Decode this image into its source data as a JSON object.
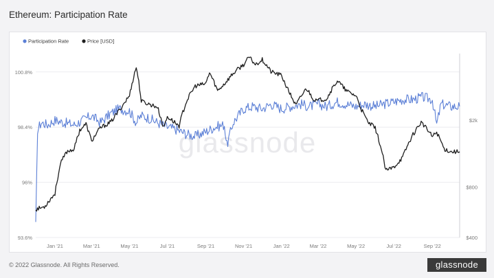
{
  "title": "Ethereum: Participation Rate",
  "footer": "© 2022 Glassnode. All Rights Reserved.",
  "watermark": "glassnode",
  "logo_text": "glassnode",
  "colors": {
    "participation": "#5b7fd6",
    "price": "#1e1e1e",
    "grid": "#ececef"
  },
  "chart_data": {
    "type": "line",
    "title": "Ethereum: Participation Rate",
    "legend": [
      "Participation Rate",
      "Price [USD]"
    ],
    "legend_position": "top-left",
    "grid": true,
    "x_ticks": [
      "Jan '21",
      "Mar '21",
      "May '21",
      "Jul '21",
      "Sep '21",
      "Nov '21",
      "Jan '22",
      "Mar '22",
      "May '22",
      "Jul '22",
      "Sep '22"
    ],
    "y_left": {
      "ticks": [
        "100.8%",
        "98.4%",
        "96%",
        "93.6%"
      ],
      "range": [
        93.6,
        101.6
      ]
    },
    "y_right": {
      "ticks": [
        "$2k",
        "$800",
        "$400"
      ],
      "scale": "log",
      "range": [
        400,
        5000
      ]
    },
    "x_range": [
      "2020-12-01",
      "2022-10-15"
    ],
    "series": [
      {
        "name": "Participation Rate",
        "axis": "left",
        "x": [
          "2020-12-01",
          "2020-12-04",
          "2020-12-10",
          "2020-12-20",
          "2021-01-01",
          "2021-01-15",
          "2021-02-01",
          "2021-02-15",
          "2021-03-01",
          "2021-03-15",
          "2021-04-01",
          "2021-04-15",
          "2021-05-01",
          "2021-05-12",
          "2021-05-20",
          "2021-06-01",
          "2021-06-15",
          "2021-07-01",
          "2021-07-15",
          "2021-08-01",
          "2021-08-15",
          "2021-09-01",
          "2021-09-15",
          "2021-10-01",
          "2021-10-05",
          "2021-10-15",
          "2021-11-01",
          "2021-11-15",
          "2021-12-01",
          "2021-12-15",
          "2022-01-01",
          "2022-01-15",
          "2022-02-01",
          "2022-02-15",
          "2022-03-01",
          "2022-03-15",
          "2022-04-01",
          "2022-04-15",
          "2022-05-01",
          "2022-05-15",
          "2022-06-01",
          "2022-06-15",
          "2022-07-01",
          "2022-07-15",
          "2022-08-01",
          "2022-08-15",
          "2022-09-01",
          "2022-09-08",
          "2022-09-15",
          "2022-10-01",
          "2022-10-15"
        ],
        "values": [
          94.1,
          98.3,
          98.6,
          98.5,
          98.7,
          98.6,
          98.5,
          98.7,
          98.9,
          98.6,
          99.0,
          99.2,
          99.1,
          98.6,
          98.9,
          98.8,
          98.6,
          98.4,
          98.3,
          98.1,
          98.0,
          98.2,
          98.4,
          98.5,
          97.6,
          98.6,
          99.2,
          99.3,
          99.2,
          99.4,
          99.2,
          99.3,
          99.4,
          99.3,
          99.4,
          99.3,
          99.5,
          99.4,
          99.3,
          99.4,
          99.3,
          99.4,
          99.5,
          99.6,
          99.6,
          99.7,
          99.6,
          98.5,
          99.4,
          99.3,
          99.3
        ]
      },
      {
        "name": "Price [USD]",
        "axis": "right",
        "x": [
          "2020-12-01",
          "2020-12-15",
          "2021-01-01",
          "2021-01-10",
          "2021-01-20",
          "2021-02-01",
          "2021-02-10",
          "2021-02-20",
          "2021-03-01",
          "2021-03-15",
          "2021-04-01",
          "2021-04-15",
          "2021-05-01",
          "2021-05-12",
          "2021-05-20",
          "2021-06-01",
          "2021-06-15",
          "2021-06-25",
          "2021-07-01",
          "2021-07-20",
          "2021-08-01",
          "2021-08-15",
          "2021-09-01",
          "2021-09-07",
          "2021-09-20",
          "2021-10-01",
          "2021-10-15",
          "2021-11-01",
          "2021-11-10",
          "2021-11-20",
          "2021-12-01",
          "2021-12-15",
          "2022-01-01",
          "2022-01-10",
          "2022-01-24",
          "2022-02-10",
          "2022-02-24",
          "2022-03-15",
          "2022-04-01",
          "2022-04-15",
          "2022-05-01",
          "2022-05-10",
          "2022-05-20",
          "2022-06-01",
          "2022-06-18",
          "2022-07-01",
          "2022-07-15",
          "2022-08-01",
          "2022-08-14",
          "2022-09-01",
          "2022-09-08",
          "2022-09-20",
          "2022-10-01",
          "2022-10-15"
        ],
        "values": [
          590,
          610,
          730,
          1100,
          1300,
          1350,
          1750,
          1900,
          1500,
          1800,
          1950,
          2300,
          2800,
          4150,
          2600,
          2500,
          2400,
          1800,
          2100,
          1850,
          2600,
          3200,
          3300,
          3850,
          3000,
          3300,
          3800,
          4300,
          4750,
          4300,
          4600,
          3900,
          3700,
          3100,
          2450,
          3100,
          2600,
          2700,
          3450,
          3000,
          2800,
          2300,
          1950,
          1800,
          1000,
          1050,
          1200,
          1650,
          1950,
          1600,
          1700,
          1350,
          1300,
          1300
        ]
      }
    ]
  }
}
